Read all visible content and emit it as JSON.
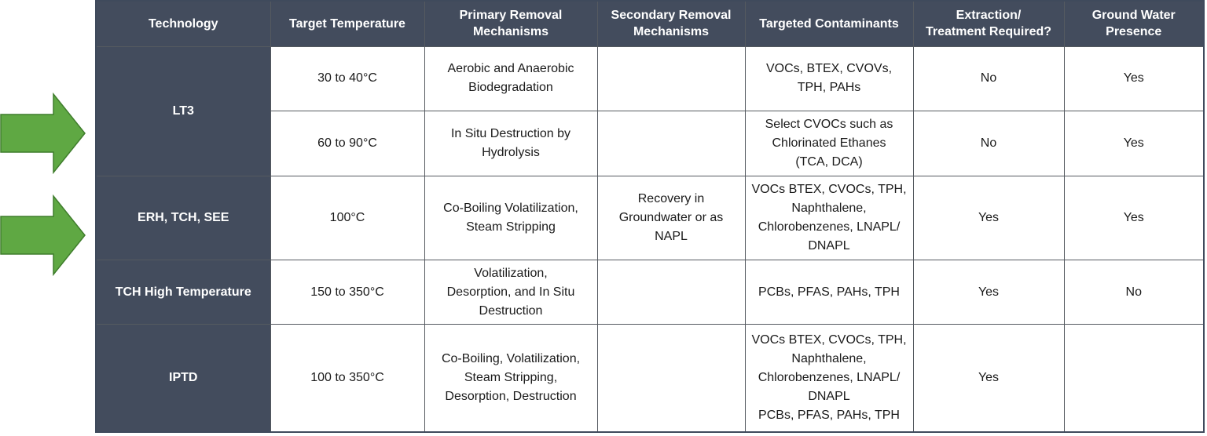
{
  "arrow_color": "#5fa843",
  "arrow_icons": [
    "right-arrow-icon",
    "right-arrow-icon"
  ],
  "header": {
    "technology": "Technology",
    "target_temperature": "Target Temperature",
    "primary": "Primary Removal\nMechanisms",
    "secondary": "Secondary Removal\nMechanisms",
    "contaminants": "Targeted Contaminants",
    "extraction": "Extraction/\nTreatment Required?",
    "groundwater": "Ground Water\nPresence"
  },
  "rows": {
    "lt3": {
      "technology": "LT3",
      "sub": [
        {
          "temperature": "30 to 40°C",
          "primary": "Aerobic and Anaerobic\nBiodegradation",
          "secondary": "",
          "contaminants": "VOCs, BTEX, CVOVs,\nTPH, PAHs",
          "extraction": "No",
          "groundwater": "Yes"
        },
        {
          "temperature": "60 to 90°C",
          "primary": "In Situ Destruction by\nHydrolysis",
          "secondary": "",
          "contaminants": "Select CVOCs such as\nChlorinated Ethanes\n(TCA, DCA)",
          "extraction": "No",
          "groundwater": "Yes"
        }
      ]
    },
    "erh": {
      "technology": "ERH, TCH, SEE",
      "temperature": "100°C",
      "primary": "Co-Boiling Volatilization,\nSteam Stripping",
      "secondary": "Recovery in\nGroundwater or as\nNAPL",
      "contaminants": "VOCs BTEX, CVOCs, TPH,\nNaphthalene,\nChlorobenzenes, LNAPL/\nDNAPL",
      "extraction": "Yes",
      "groundwater": "Yes"
    },
    "tch_high": {
      "technology": "TCH High Temperature",
      "temperature": "150 to 350°C",
      "primary": "Volatilization,\nDesorption, and In Situ\nDestruction",
      "secondary": "",
      "contaminants": "PCBs, PFAS, PAHs, TPH",
      "extraction": "Yes",
      "groundwater": "No"
    },
    "iptd": {
      "technology": "IPTD",
      "temperature": "100 to 350°C",
      "primary": "Co-Boiling, Volatilization,\nSteam Stripping,\nDesorption, Destruction",
      "secondary": "",
      "contaminants": "VOCs BTEX, CVOCs, TPH,\nNaphthalene,\nChlorobenzenes, LNAPL/\nDNAPL\nPCBs, PFAS, PAHs, TPH",
      "extraction": "Yes",
      "groundwater": ""
    }
  }
}
